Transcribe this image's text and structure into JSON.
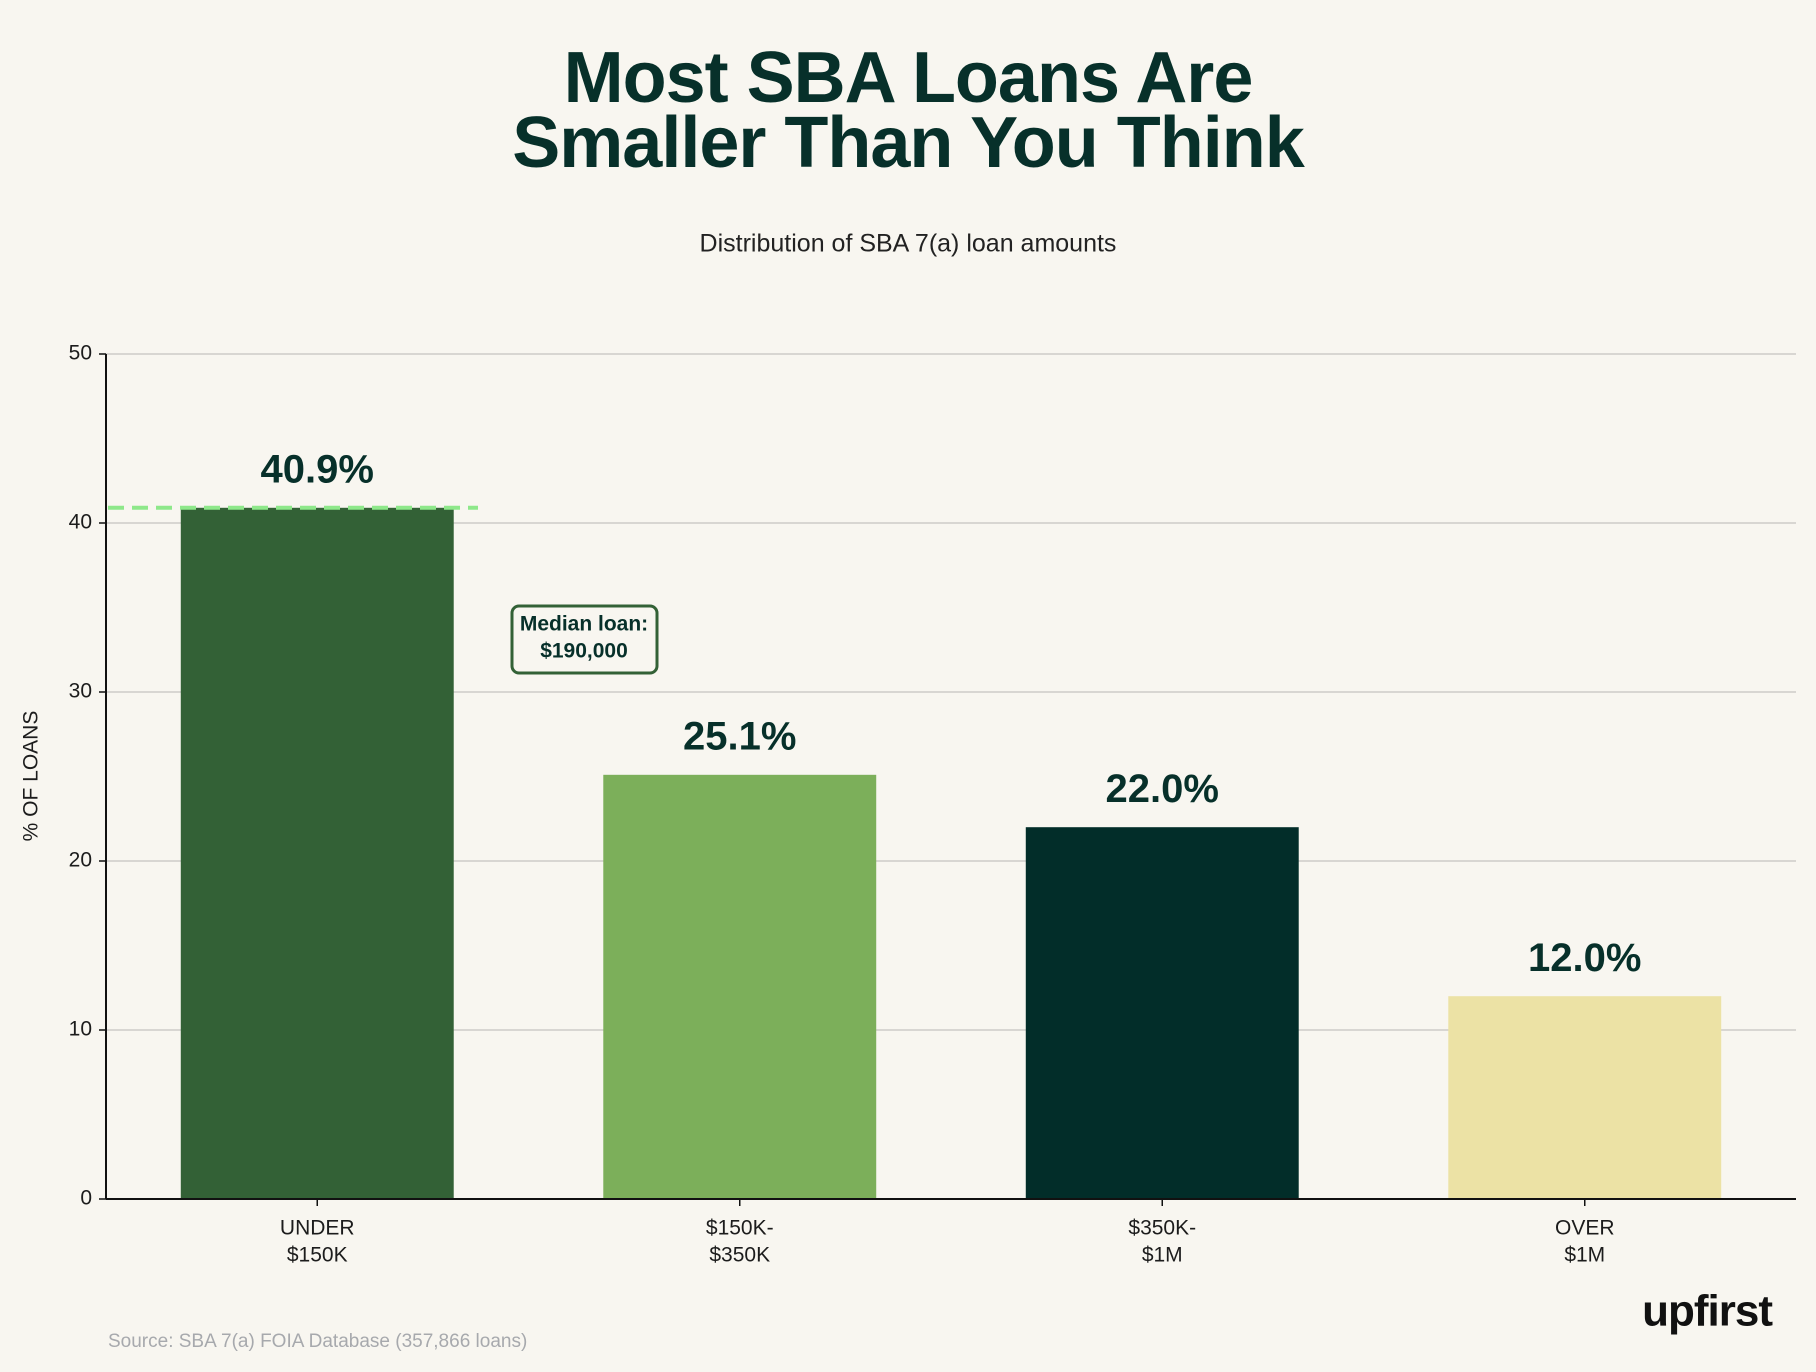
{
  "chart_data": {
    "type": "bar",
    "title": [
      "Most SBA Loans Are",
      "Smaller Than You Think"
    ],
    "subtitle": "Distribution of SBA 7(a) loan amounts",
    "ylabel": "% OF LOANS",
    "categories": [
      [
        "UNDER",
        "$150K"
      ],
      [
        "$150K-",
        "$350K"
      ],
      [
        "$350K-",
        "$1M"
      ],
      [
        "OVER",
        "$1M"
      ]
    ],
    "values": [
      40.9,
      25.1,
      22.0,
      12.0
    ],
    "value_labels": [
      "40.9%",
      "25.1%",
      "22.0%",
      "12.0%"
    ],
    "colors": [
      "#336136",
      "#7caf5a",
      "#022d29",
      "#ece2a5"
    ],
    "ylim": [
      0,
      50
    ],
    "yticks": [
      0,
      10,
      20,
      30,
      40,
      50
    ],
    "grid": true,
    "median_line": {
      "value": 40.9,
      "color": "#8ee88a"
    },
    "annotation": [
      "Median loan:",
      "$190,000"
    ],
    "source": "Source: SBA 7(a) FOIA Database (357,866 loans)",
    "logo": "upfirst"
  }
}
